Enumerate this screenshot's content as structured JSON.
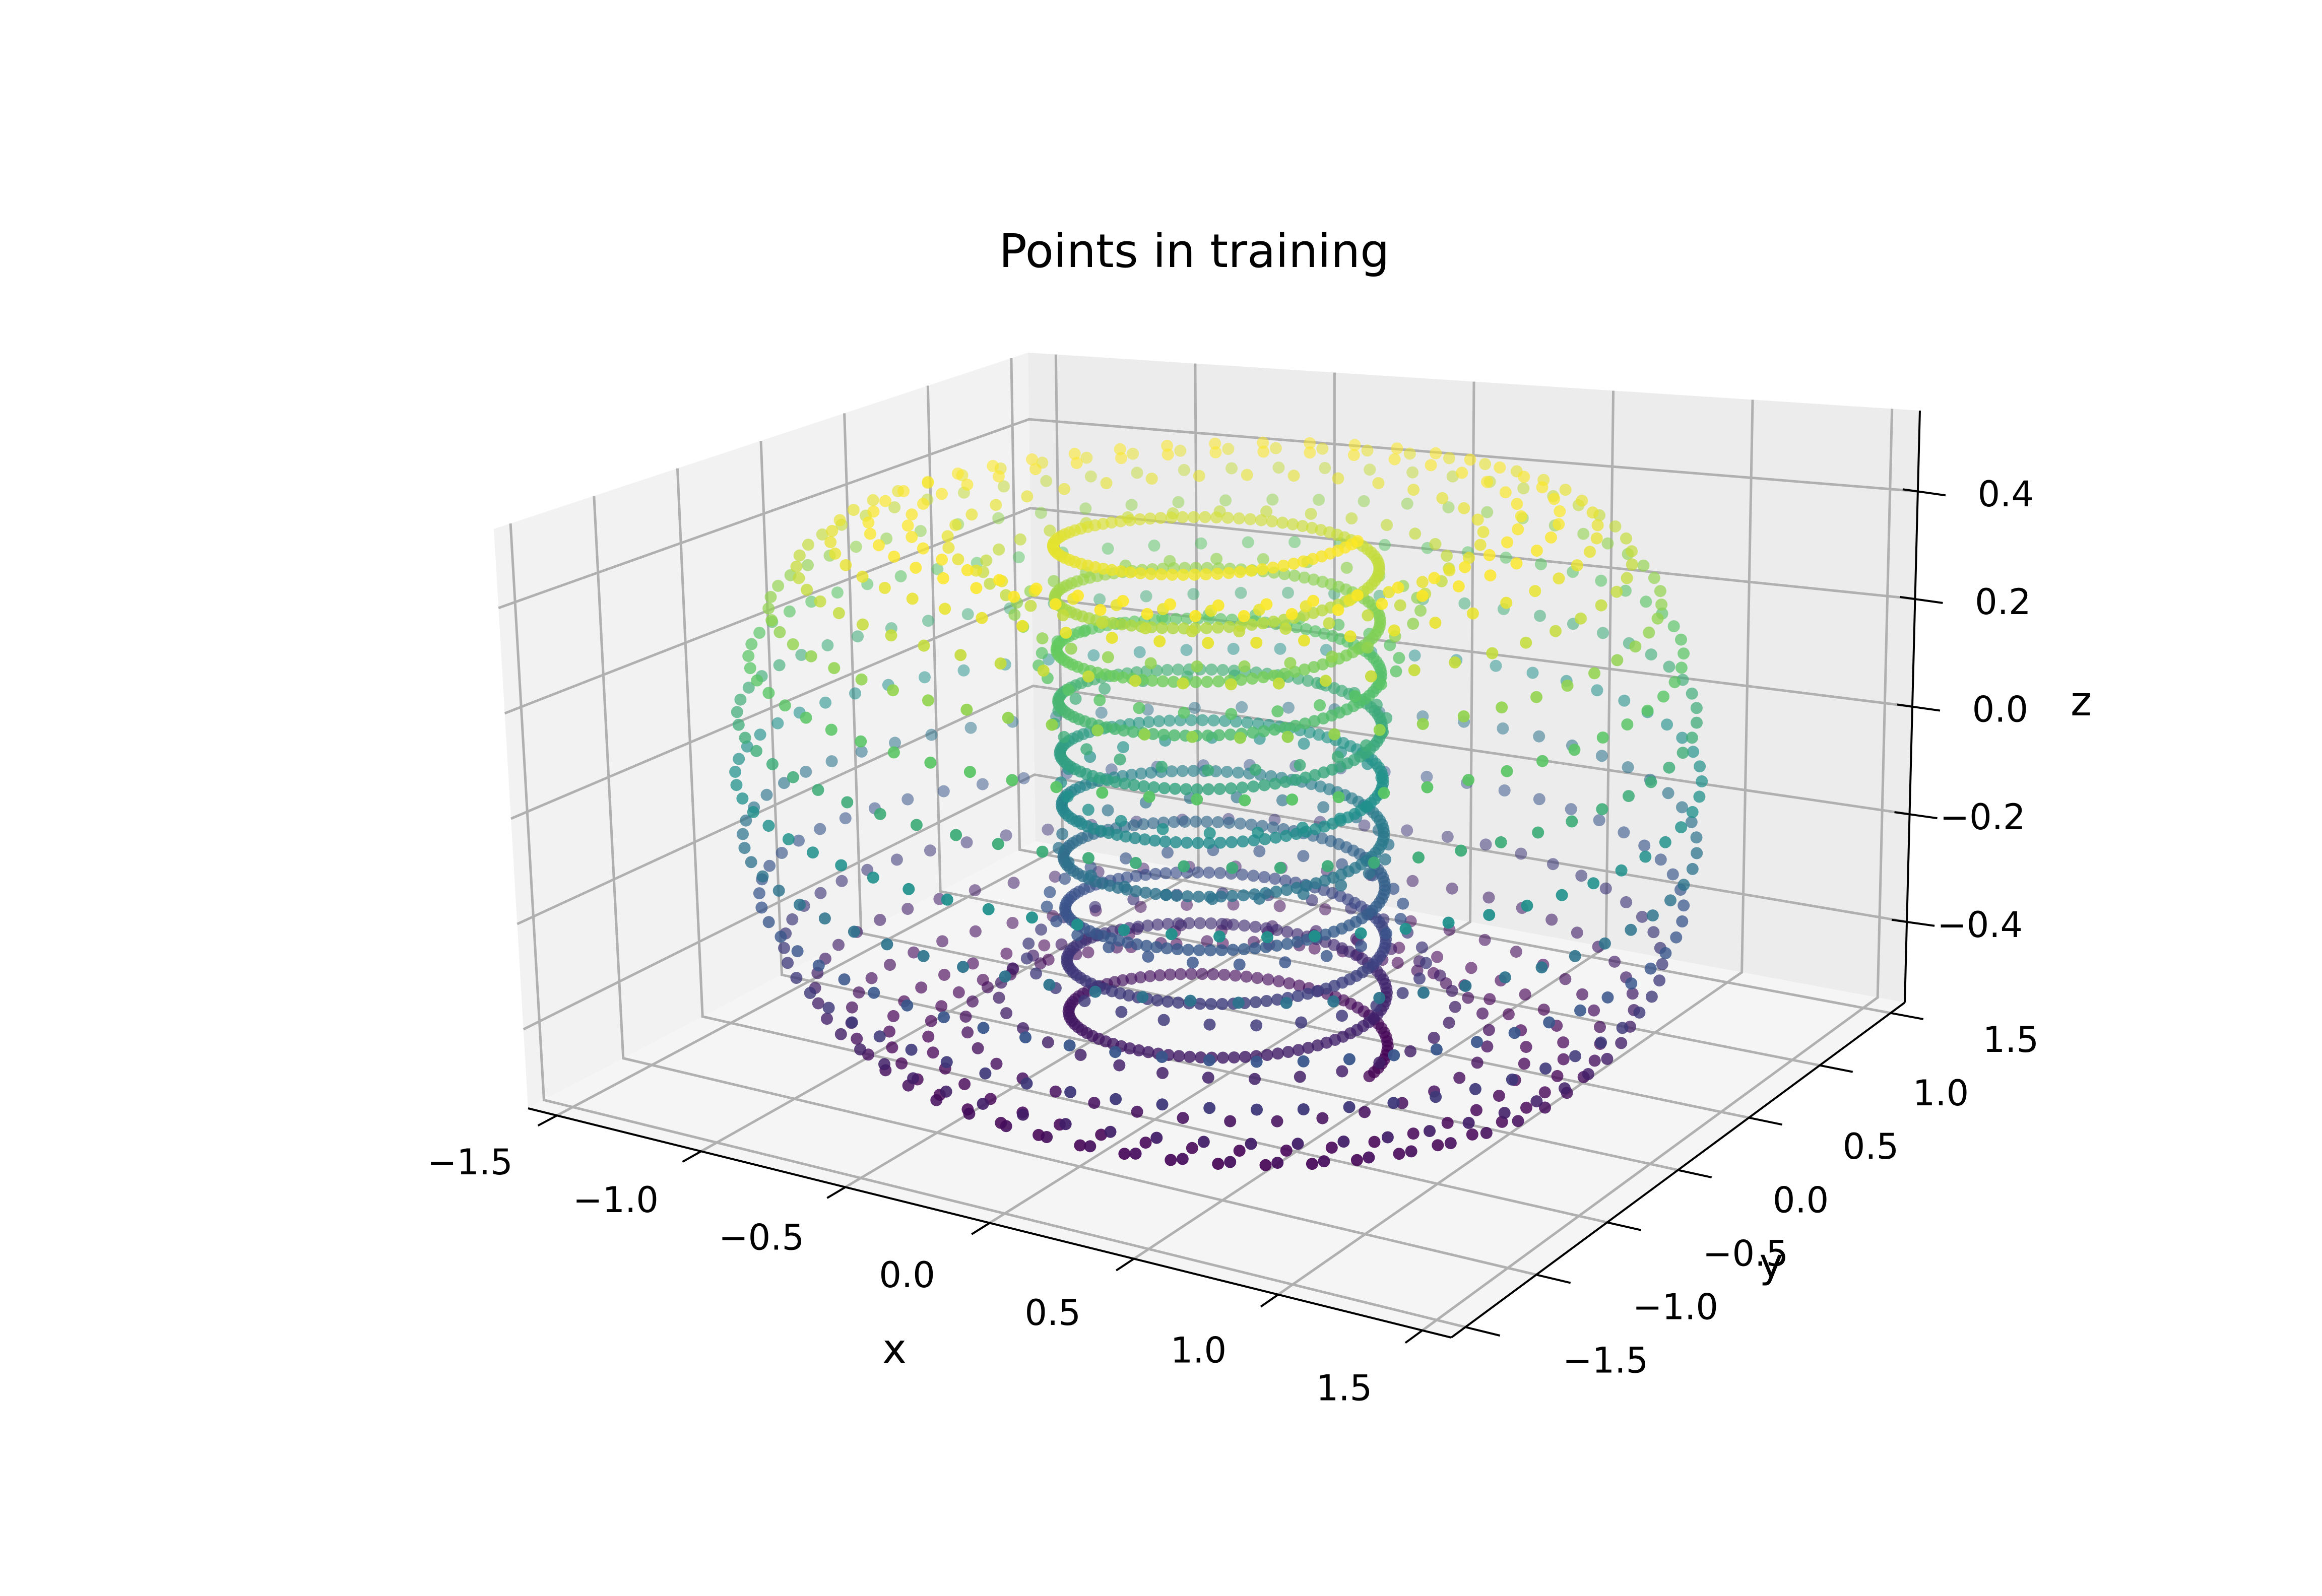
{
  "chart_data": {
    "type": "scatter",
    "title": "Points in training",
    "xlabel": "x",
    "ylabel": "y",
    "zlabel": "z",
    "xlim": [
      -1.6,
      1.6
    ],
    "ylim": [
      -1.6,
      1.6
    ],
    "zlim": [
      -0.55,
      0.55
    ],
    "x_ticks": [
      -1.5,
      -1.0,
      -0.5,
      0.0,
      0.5,
      1.0,
      1.5
    ],
    "x_tick_labels": [
      "−1.5",
      "−1.0",
      "−0.5",
      "0.0",
      "0.5",
      "1.0",
      "1.5"
    ],
    "y_ticks": [
      -1.5,
      -1.0,
      -0.5,
      0.0,
      0.5,
      1.0,
      1.5
    ],
    "y_tick_labels": [
      "−1.5",
      "−1.0",
      "−0.5",
      "0.0",
      "0.5",
      "1.0",
      "1.5"
    ],
    "z_ticks": [
      -0.4,
      -0.2,
      0.0,
      0.2,
      0.4
    ],
    "z_tick_labels": [
      "−0.4",
      "−0.2",
      "0.0",
      "0.2",
      "0.4"
    ],
    "grid": true,
    "colormap": "viridis",
    "color_by": "z",
    "series": [
      {
        "shape": "torus",
        "major_radius": 1.0,
        "minor_radius": 0.5,
        "center": [
          0,
          0,
          0
        ],
        "description_from_pixels": "scattered point cloud on a torus surface, colored by z"
      },
      {
        "shape": "helix",
        "radius": 0.5,
        "z_range": [
          -0.5,
          0.5
        ],
        "turns": 10,
        "description_from_pixels": "dense helical coil through the torus hole"
      }
    ]
  },
  "colors": {
    "pane_left": "#f2f2f2",
    "pane_back": "#ececec",
    "pane_floor": "#f5f5f5",
    "grid": "#b0b0b0",
    "viridis": [
      "#440154",
      "#3b528b",
      "#21918c",
      "#5ec962",
      "#fde725"
    ]
  }
}
